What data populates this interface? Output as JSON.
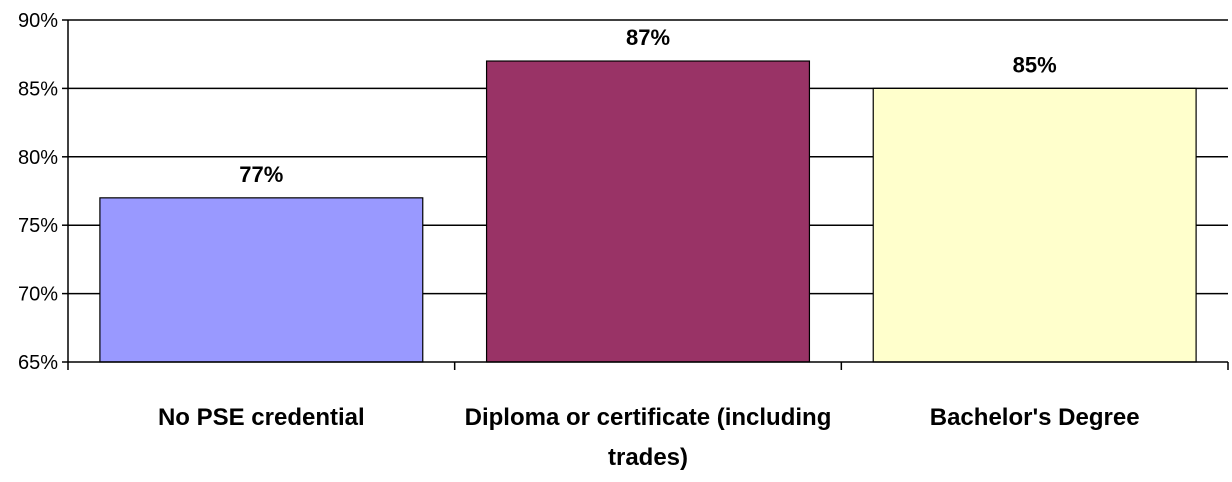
{
  "chart_data": {
    "type": "bar",
    "categories": [
      "No PSE credential",
      "Diploma or certificate (including trades)",
      "Bachelor's Degree"
    ],
    "category_label_lines": [
      [
        "No PSE credential"
      ],
      [
        "Diploma or certificate (including",
        "trades)"
      ],
      [
        "Bachelor's Degree"
      ]
    ],
    "values": [
      77,
      87,
      85
    ],
    "data_labels": [
      "77%",
      "87%",
      "85%"
    ],
    "colors": [
      "#9999ff",
      "#993366",
      "#ffffcc"
    ],
    "ylim": [
      65,
      90
    ],
    "yticks": [
      65,
      70,
      75,
      80,
      85,
      90
    ],
    "ytick_labels": [
      "65%",
      "70%",
      "75%",
      "80%",
      "85%",
      "90%"
    ],
    "grid": true,
    "legend": false,
    "title": "",
    "xlabel": "",
    "ylabel": ""
  }
}
